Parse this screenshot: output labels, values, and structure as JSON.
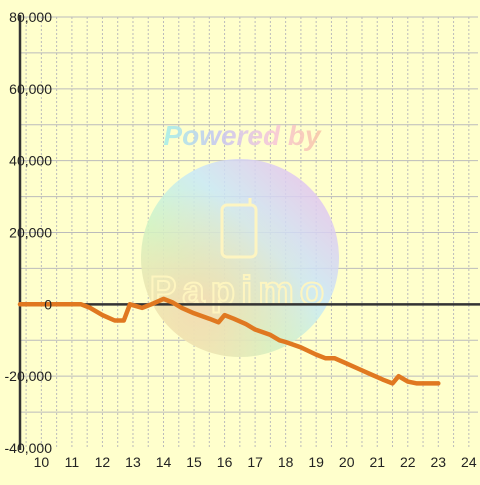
{
  "chart_data": {
    "type": "line",
    "title": "",
    "xlabel": "",
    "ylabel": "",
    "xlim": [
      9.3,
      24.3
    ],
    "ylim": [
      -40000,
      80000
    ],
    "x_ticks": [
      10,
      11,
      12,
      13,
      14,
      15,
      16,
      17,
      18,
      19,
      20,
      21,
      22,
      23,
      24
    ],
    "y_ticks": [
      -40000,
      -20000,
      0,
      20000,
      40000,
      60000,
      80000
    ],
    "y_tick_labels": [
      "-40,000",
      "-20,000",
      "0",
      "20,000",
      "40,000",
      "60,000",
      "80,000"
    ],
    "grid": true,
    "series": [
      {
        "color": "#e07820",
        "x": [
          9.3,
          11.0,
          11.3,
          11.6,
          12.0,
          12.4,
          12.7,
          12.9,
          13.3,
          13.6,
          14.0,
          14.3,
          14.6,
          15.0,
          15.5,
          15.8,
          16.0,
          16.3,
          16.7,
          17.0,
          17.5,
          17.8,
          18.0,
          18.5,
          19.0,
          19.3,
          19.6,
          20.0,
          20.4,
          20.8,
          21.2,
          21.5,
          21.7,
          22.0,
          22.3,
          23.0
        ],
        "y": [
          0,
          0,
          0,
          -1000,
          -3000,
          -4500,
          -4500,
          0,
          -1000,
          0,
          1500,
          500,
          -1000,
          -2500,
          -4000,
          -5000,
          -3000,
          -4000,
          -5500,
          -7000,
          -8500,
          -10000,
          -10500,
          -12000,
          -14000,
          -15000,
          -15000,
          -16500,
          -18000,
          -19500,
          -21000,
          -22000,
          -20000,
          -21500,
          -22000,
          -22000
        ]
      }
    ]
  },
  "watermark": {
    "text": "Powered by",
    "logo_text": "Papimo"
  },
  "colors": {
    "background": "#ffffcc",
    "grid": "#bbbbbb",
    "axis": "#333333",
    "line": "#e07820"
  }
}
